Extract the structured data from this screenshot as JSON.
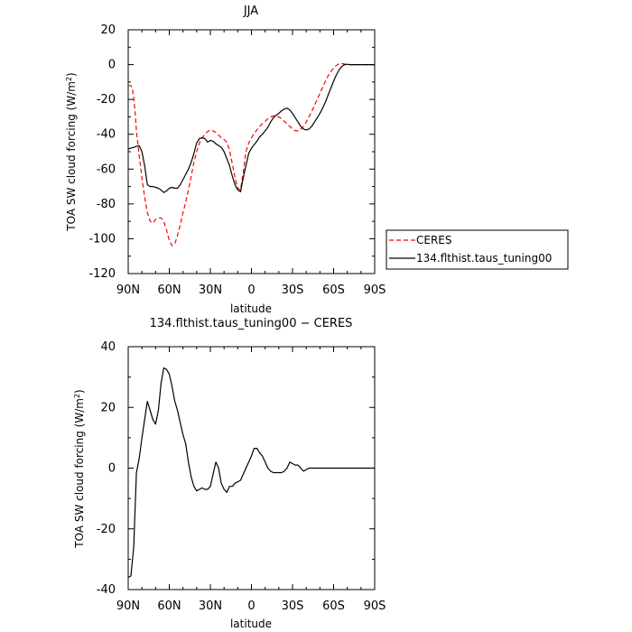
{
  "chart_data": [
    {
      "type": "line",
      "title": "JJA",
      "xlabel": "latitude",
      "ylabel": "TOA SW cloud forcing (W/m²)",
      "ylabel_parts": {
        "main": "TOA SW cloud forcing (W/m",
        "sup": "2",
        "close": ")"
      },
      "xlim": [
        90,
        -90
      ],
      "ylim": [
        -120,
        20
      ],
      "x_ticks": [
        {
          "value": 90,
          "label": "90N"
        },
        {
          "value": 60,
          "label": "60N"
        },
        {
          "value": 30,
          "label": "30N"
        },
        {
          "value": 0,
          "label": "0"
        },
        {
          "value": -30,
          "label": "30S"
        },
        {
          "value": -60,
          "label": "60S"
        },
        {
          "value": -90,
          "label": "90S"
        }
      ],
      "y_ticks": [
        20,
        0,
        -20,
        -40,
        -60,
        -80,
        -100,
        -120
      ],
      "legend_position": "right, outside plot",
      "series": [
        {
          "name": "CERES",
          "color": "#ff0000",
          "style": "dashed",
          "x": [
            90,
            88,
            87,
            86,
            85,
            84,
            82,
            80,
            78,
            76,
            74,
            72,
            70,
            68,
            66,
            64,
            62,
            60,
            58,
            56,
            54,
            52,
            50,
            48,
            46,
            44,
            42,
            40,
            38,
            36,
            34,
            32,
            30,
            28,
            26,
            24,
            22,
            20,
            18,
            16,
            14,
            12,
            10,
            8,
            6,
            4,
            2,
            0,
            -2,
            -4,
            -6,
            -8,
            -10,
            -12,
            -14,
            -16,
            -18,
            -20,
            -22,
            -24,
            -26,
            -28,
            -30,
            -32,
            -34,
            -36,
            -38,
            -40,
            -42,
            -44,
            -46,
            -48,
            -50,
            -52,
            -54,
            -56,
            -58,
            -60,
            -62,
            -64,
            -66,
            -68,
            -70,
            -72,
            -74,
            -76,
            -78,
            -80,
            -82,
            -84,
            -86,
            -88,
            -90
          ],
          "y": [
            -12,
            -12,
            -14,
            -19,
            -27,
            -38,
            -52,
            -65,
            -76,
            -85,
            -90,
            -91,
            -89,
            -88,
            -88,
            -90,
            -95,
            -101,
            -104,
            -103,
            -98,
            -92,
            -85,
            -79,
            -72,
            -64,
            -56,
            -50,
            -45,
            -42,
            -40,
            -38.5,
            -37.5,
            -38,
            -39,
            -40.5,
            -42,
            -43,
            -44.5,
            -49,
            -57,
            -65,
            -71,
            -72,
            -62,
            -50,
            -45,
            -42,
            -39.5,
            -37.5,
            -35.5,
            -34,
            -32.5,
            -31,
            -30,
            -29.5,
            -29.5,
            -30,
            -31,
            -32.5,
            -34,
            -35.5,
            -37,
            -38,
            -38,
            -37,
            -35.5,
            -33,
            -30,
            -27,
            -23.5,
            -20,
            -16.5,
            -13,
            -9.5,
            -6.5,
            -4,
            -2,
            -0.5,
            0.5,
            0.6,
            0.3,
            0.1,
            0,
            0,
            0,
            0,
            0,
            0,
            0,
            0,
            0,
            0
          ]
        },
        {
          "name": "134.flthist.taus_tuning00",
          "color": "#000000",
          "style": "solid",
          "x": [
            90,
            88,
            86,
            84,
            82,
            80,
            78,
            76,
            74,
            72,
            70,
            68,
            66,
            64,
            62,
            60,
            58,
            56,
            54,
            52,
            50,
            48,
            46,
            44,
            42,
            40,
            38,
            36,
            34,
            32,
            30,
            28,
            26,
            24,
            22,
            20,
            18,
            16,
            14,
            12,
            10,
            8,
            6,
            4,
            2,
            0,
            -2,
            -4,
            -6,
            -8,
            -10,
            -12,
            -14,
            -16,
            -18,
            -20,
            -22,
            -24,
            -26,
            -28,
            -30,
            -32,
            -34,
            -36,
            -38,
            -40,
            -42,
            -44,
            -46,
            -48,
            -50,
            -52,
            -54,
            -56,
            -58,
            -60,
            -62,
            -64,
            -66,
            -68,
            -70,
            -72,
            -74,
            -76,
            -78,
            -80,
            -82,
            -84,
            -86,
            -88,
            -90
          ],
          "y": [
            -48.5,
            -48,
            -47.5,
            -47,
            -46.5,
            -50,
            -58,
            -69,
            -70,
            -70,
            -70.5,
            -71,
            -72,
            -73.5,
            -72.5,
            -71,
            -70.5,
            -71,
            -71,
            -69,
            -66,
            -63,
            -60,
            -56,
            -51,
            -45,
            -42.5,
            -42,
            -42.5,
            -44.5,
            -43.5,
            -44,
            -45.5,
            -46.5,
            -47.5,
            -50,
            -54,
            -58,
            -64,
            -69,
            -72,
            -73,
            -65,
            -58,
            -51,
            -48,
            -46,
            -44,
            -41.5,
            -40,
            -38,
            -36,
            -33,
            -30.5,
            -29,
            -28,
            -26.5,
            -25.5,
            -25,
            -26,
            -28,
            -30.5,
            -33,
            -35.5,
            -37,
            -37.5,
            -37,
            -35.5,
            -33,
            -30.5,
            -28,
            -25,
            -21.5,
            -17.5,
            -13.5,
            -9.5,
            -6,
            -3,
            -1,
            0,
            0.2,
            0,
            0,
            0,
            0,
            0,
            0,
            0,
            0,
            0,
            0
          ]
        }
      ]
    },
    {
      "type": "line",
      "title": "134.flthist.taus_tuning00 − CERES",
      "xlabel": "latitude",
      "ylabel": "TOA SW cloud forcing (W/m²)",
      "ylabel_parts": {
        "main": "TOA SW cloud forcing (W/m",
        "sup": "2",
        "close": ")"
      },
      "xlim": [
        90,
        -90
      ],
      "ylim": [
        -40,
        40
      ],
      "x_ticks": [
        {
          "value": 90,
          "label": "90N"
        },
        {
          "value": 60,
          "label": "60N"
        },
        {
          "value": 30,
          "label": "30N"
        },
        {
          "value": 0,
          "label": "0"
        },
        {
          "value": -30,
          "label": "30S"
        },
        {
          "value": -60,
          "label": "60S"
        },
        {
          "value": -90,
          "label": "90S"
        }
      ],
      "y_ticks": [
        40,
        20,
        0,
        -20,
        -40
      ],
      "series": [
        {
          "color": "#000000",
          "style": "solid",
          "x": [
            90,
            88,
            86,
            84,
            82,
            80,
            78,
            76,
            74,
            72,
            70,
            68,
            66,
            64,
            62,
            60,
            58,
            56,
            54,
            52,
            50,
            48,
            46,
            44,
            42,
            40,
            38,
            36,
            34,
            32,
            30,
            28,
            26,
            24,
            22,
            20,
            18,
            16,
            14,
            12,
            10,
            8,
            6,
            4,
            2,
            0,
            -2,
            -4,
            -6,
            -8,
            -10,
            -12,
            -14,
            -16,
            -18,
            -20,
            -22,
            -24,
            -26,
            -28,
            -30,
            -32,
            -34,
            -36,
            -38,
            -40,
            -42,
            -44,
            -46,
            -48,
            -50,
            -52,
            -54,
            -56,
            -58,
            -60,
            -62,
            -64,
            -66,
            -68,
            -70,
            -72,
            -74,
            -76,
            -78,
            -80,
            -82,
            -84,
            -86,
            -88,
            -90
          ],
          "y": [
            -36,
            -35.5,
            -26,
            -1.5,
            3,
            10,
            16,
            22,
            19,
            16,
            14.5,
            19,
            28,
            33,
            32.5,
            31,
            27,
            22,
            19,
            15,
            11,
            8,
            2,
            -3,
            -6,
            -7.5,
            -7,
            -6.5,
            -7,
            -7,
            -6,
            -2,
            2,
            0,
            -5,
            -7,
            -8,
            -6,
            -6,
            -5,
            -4.5,
            -4,
            -2,
            0,
            2,
            4,
            6.5,
            6.5,
            5,
            4,
            2,
            0,
            -1,
            -1.5,
            -1.5,
            -1.5,
            -1.5,
            -1,
            0,
            2,
            1.5,
            1,
            1,
            0,
            -1,
            -0.5,
            0,
            0,
            0,
            0,
            0,
            0,
            0,
            0,
            0,
            0,
            0,
            0,
            0,
            0,
            0,
            0,
            0,
            0,
            0,
            0,
            0,
            0,
            0,
            0,
            0
          ]
        }
      ]
    }
  ]
}
